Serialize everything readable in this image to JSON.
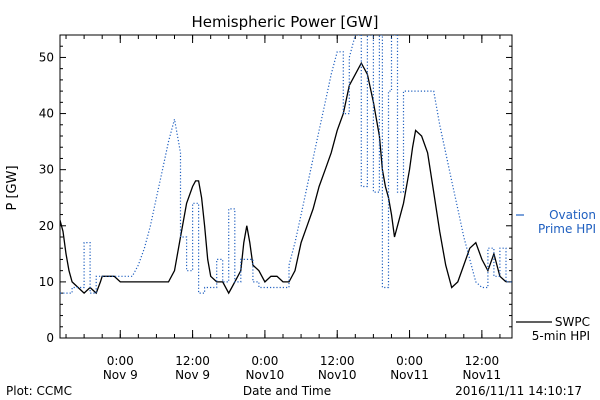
{
  "chart_data": {
    "type": "line",
    "title": "Hemispheric Power [GW]",
    "ylabel": "P [GW]",
    "xlabel": "Date and Time",
    "ylim": [
      0,
      54
    ],
    "xlim_hours": [
      0,
      75
    ],
    "grid": false,
    "y_ticks": [
      0,
      10,
      20,
      30,
      40,
      50
    ],
    "x_ticks": [
      {
        "hour": 10,
        "time": "0:00",
        "date": "Nov 9"
      },
      {
        "hour": 22,
        "time": "12:00",
        "date": "Nov 9"
      },
      {
        "hour": 34,
        "time": "0:00",
        "date": "Nov10"
      },
      {
        "hour": 46,
        "time": "12:00",
        "date": "Nov10"
      },
      {
        "hour": 58,
        "time": "0:00",
        "date": "Nov11"
      },
      {
        "hour": 70,
        "time": "12:00",
        "date": "Nov11"
      }
    ],
    "series": [
      {
        "legend_lines": [
          "SWPC",
          "5-min HPI"
        ],
        "color": "#000000",
        "style": "solid",
        "points": [
          [
            0,
            21
          ],
          [
            0.5,
            19
          ],
          [
            1,
            15
          ],
          [
            1.5,
            12
          ],
          [
            2,
            10
          ],
          [
            3,
            9
          ],
          [
            4,
            8
          ],
          [
            5,
            9
          ],
          [
            6,
            8
          ],
          [
            6.7,
            10
          ],
          [
            7,
            11
          ],
          [
            8,
            11
          ],
          [
            9,
            11
          ],
          [
            10,
            10
          ],
          [
            12,
            10
          ],
          [
            14,
            10
          ],
          [
            16,
            10
          ],
          [
            18,
            10
          ],
          [
            19,
            12
          ],
          [
            20,
            18
          ],
          [
            21,
            24
          ],
          [
            22,
            27
          ],
          [
            22.5,
            28
          ],
          [
            23,
            28
          ],
          [
            23.5,
            25
          ],
          [
            24,
            20
          ],
          [
            24.5,
            14
          ],
          [
            25,
            11
          ],
          [
            26,
            10
          ],
          [
            27,
            10
          ],
          [
            28,
            8
          ],
          [
            28.5,
            9
          ],
          [
            29,
            10
          ],
          [
            30,
            12
          ],
          [
            30.5,
            17
          ],
          [
            31,
            20
          ],
          [
            31.5,
            17
          ],
          [
            32,
            13
          ],
          [
            33,
            12
          ],
          [
            34,
            10
          ],
          [
            35,
            11
          ],
          [
            36,
            11
          ],
          [
            37,
            10
          ],
          [
            38,
            10
          ],
          [
            39,
            12
          ],
          [
            40,
            17
          ],
          [
            41,
            20
          ],
          [
            42,
            23
          ],
          [
            43,
            27
          ],
          [
            44,
            30
          ],
          [
            45,
            33
          ],
          [
            46,
            37
          ],
          [
            47,
            40
          ],
          [
            48,
            45
          ],
          [
            49,
            47
          ],
          [
            50,
            49
          ],
          [
            51,
            47
          ],
          [
            52,
            42
          ],
          [
            53,
            36
          ],
          [
            53.5,
            30
          ],
          [
            54,
            27
          ],
          [
            54.5,
            25
          ],
          [
            55,
            22
          ],
          [
            55.5,
            18
          ],
          [
            56,
            20
          ],
          [
            56.5,
            22
          ],
          [
            57,
            24
          ],
          [
            58,
            30
          ],
          [
            58.5,
            34
          ],
          [
            59,
            37
          ],
          [
            60,
            36
          ],
          [
            61,
            33
          ],
          [
            62,
            26
          ],
          [
            63,
            19
          ],
          [
            64,
            13
          ],
          [
            65,
            9
          ],
          [
            66,
            10
          ],
          [
            67,
            13
          ],
          [
            68,
            16
          ],
          [
            69,
            17
          ],
          [
            70,
            14
          ],
          [
            71,
            12
          ],
          [
            72,
            15
          ],
          [
            73,
            11
          ],
          [
            74,
            10
          ]
        ]
      },
      {
        "legend_lines": [
          "Ovation",
          "Prime HPI"
        ],
        "color": "#2060c0",
        "style": "dotted",
        "points": [
          [
            0,
            8
          ],
          [
            2,
            8
          ],
          [
            2,
            9
          ],
          [
            4,
            9
          ],
          [
            4,
            17
          ],
          [
            5,
            17
          ],
          [
            5,
            8
          ],
          [
            6,
            8
          ],
          [
            6,
            11
          ],
          [
            12,
            11
          ],
          [
            13,
            13
          ],
          [
            14,
            16
          ],
          [
            15,
            20
          ],
          [
            16,
            25
          ],
          [
            17,
            30
          ],
          [
            18,
            35
          ],
          [
            19,
            39
          ],
          [
            20,
            33
          ],
          [
            20,
            18
          ],
          [
            21,
            18
          ],
          [
            21,
            12
          ],
          [
            22,
            12
          ],
          [
            22,
            24
          ],
          [
            23,
            24
          ],
          [
            23,
            8
          ],
          [
            24,
            8
          ],
          [
            24,
            9
          ],
          [
            26,
            9
          ],
          [
            26,
            14
          ],
          [
            27,
            14
          ],
          [
            27,
            10
          ],
          [
            28,
            10
          ],
          [
            28,
            23
          ],
          [
            29,
            23
          ],
          [
            29,
            10
          ],
          [
            30,
            10
          ],
          [
            30,
            14
          ],
          [
            32,
            14
          ],
          [
            32,
            10
          ],
          [
            33,
            10
          ],
          [
            33,
            9
          ],
          [
            38,
            9
          ],
          [
            38,
            13
          ],
          [
            39,
            17
          ],
          [
            40,
            22
          ],
          [
            41,
            27
          ],
          [
            42,
            32
          ],
          [
            43,
            37
          ],
          [
            44,
            42
          ],
          [
            45,
            47
          ],
          [
            46,
            51
          ],
          [
            47,
            51
          ],
          [
            47,
            40
          ],
          [
            48,
            40
          ],
          [
            48,
            50
          ],
          [
            49,
            54
          ],
          [
            50,
            54
          ],
          [
            50,
            27
          ],
          [
            51,
            27
          ],
          [
            51,
            54
          ],
          [
            52,
            54
          ],
          [
            52,
            26
          ],
          [
            53,
            26
          ],
          [
            53,
            54
          ],
          [
            53.5,
            54
          ],
          [
            53.5,
            9
          ],
          [
            54.5,
            9
          ],
          [
            54.5,
            44
          ],
          [
            55,
            44
          ],
          [
            55,
            54
          ],
          [
            56,
            54
          ],
          [
            56,
            26
          ],
          [
            57,
            26
          ],
          [
            57,
            44
          ],
          [
            62,
            44
          ],
          [
            63,
            38
          ],
          [
            64,
            33
          ],
          [
            65,
            28
          ],
          [
            66,
            23
          ],
          [
            67,
            18
          ],
          [
            68,
            14
          ],
          [
            69,
            10
          ],
          [
            70,
            9
          ],
          [
            71,
            9
          ],
          [
            71,
            16
          ],
          [
            72,
            16
          ],
          [
            72,
            11
          ],
          [
            73,
            11
          ],
          [
            73,
            16
          ],
          [
            74,
            16
          ],
          [
            74,
            10
          ],
          [
            75,
            10
          ]
        ]
      }
    ]
  },
  "footer": {
    "plot_label": "Plot: CCMC",
    "timestamp": "2016/11/11 14:10:17"
  }
}
